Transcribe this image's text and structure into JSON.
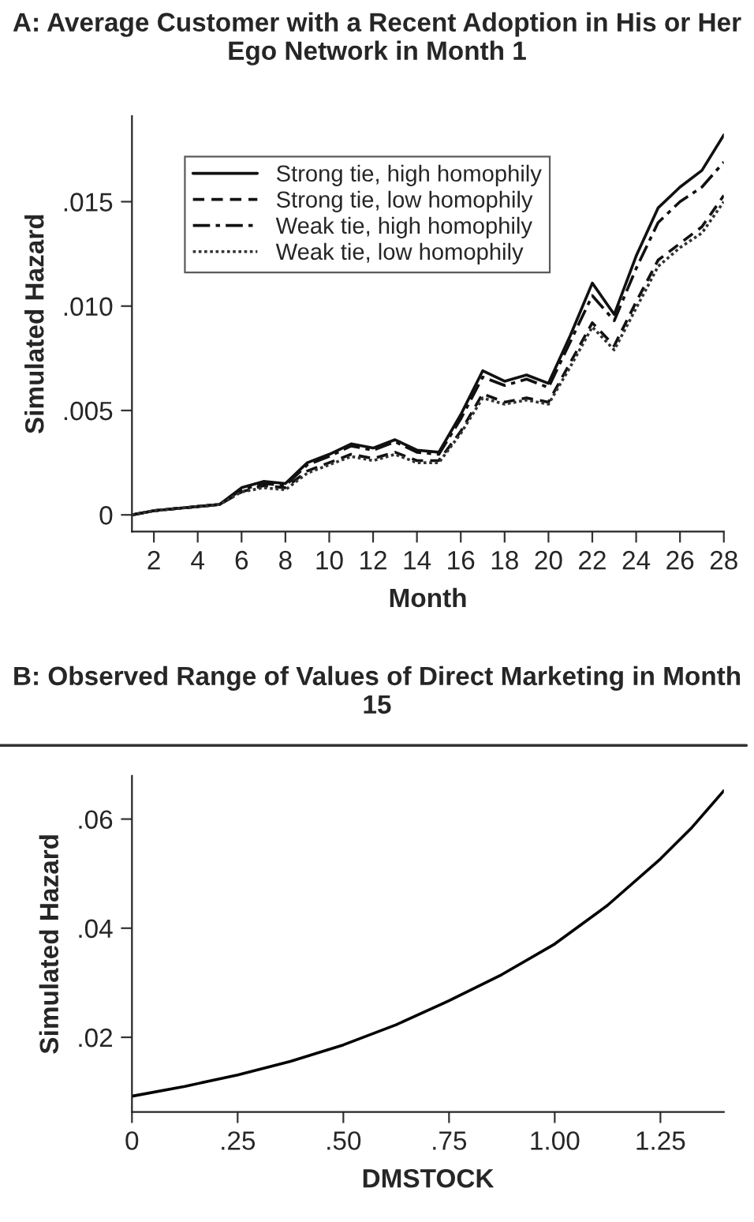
{
  "chart_data": [
    {
      "type": "line",
      "title": "A: Average Customer with a Recent Adoption in His or Her Ego Network in Month 1",
      "xlabel": "Month",
      "ylabel": "Simulated Hazard",
      "x": [
        1,
        2,
        3,
        4,
        5,
        6,
        7,
        8,
        9,
        10,
        11,
        12,
        13,
        14,
        15,
        16,
        17,
        18,
        19,
        20,
        21,
        22,
        23,
        24,
        25,
        26,
        27,
        28
      ],
      "xlim": [
        1,
        28
      ],
      "xticks": [
        2,
        4,
        6,
        8,
        10,
        12,
        14,
        16,
        18,
        20,
        22,
        24,
        26,
        28
      ],
      "ylim": [
        -0.0008,
        0.0191
      ],
      "yticks": [
        {
          "value": 0,
          "label": "0"
        },
        {
          "value": 0.005,
          "label": ".005"
        },
        {
          "value": 0.01,
          "label": ".010"
        },
        {
          "value": 0.015,
          "label": ".015"
        }
      ],
      "grid": false,
      "legend": "top left",
      "marker": "none",
      "series": [
        {
          "name": "Strong tie, high homophily",
          "color": "#111111",
          "line_style": "solid",
          "values": [
            0,
            0.0002,
            0.0003,
            0.0004,
            0.0005,
            0.0013,
            0.0016,
            0.0015,
            0.0025,
            0.0029,
            0.0034,
            0.0032,
            0.0036,
            0.0031,
            0.003,
            0.0048,
            0.0069,
            0.0064,
            0.0067,
            0.0063,
            0.0086,
            0.0111,
            0.0096,
            0.0124,
            0.0147,
            0.0157,
            0.0165,
            0.0182
          ]
        },
        {
          "name": "Strong tie, low homophily",
          "color": "#111111",
          "line_style": "dashed",
          "values": [
            0,
            0.0002,
            0.0003,
            0.0004,
            0.0005,
            0.0011,
            0.0014,
            0.0013,
            0.0021,
            0.0025,
            0.0029,
            0.0027,
            0.003,
            0.0026,
            0.0026,
            0.004,
            0.0058,
            0.0054,
            0.0056,
            0.0054,
            0.0073,
            0.0092,
            0.0081,
            0.0102,
            0.0122,
            0.013,
            0.0138,
            0.0153
          ]
        },
        {
          "name": "Weak tie, high homophily",
          "color": "#111111",
          "line_style": "dashdot",
          "values": [
            0,
            0.0002,
            0.0003,
            0.0004,
            0.0005,
            0.0012,
            0.0015,
            0.0014,
            0.0024,
            0.0028,
            0.0033,
            0.0031,
            0.0035,
            0.003,
            0.0029,
            0.0046,
            0.0066,
            0.0062,
            0.0065,
            0.0061,
            0.0083,
            0.0105,
            0.0093,
            0.0118,
            0.014,
            0.015,
            0.0157,
            0.0169
          ]
        },
        {
          "name": "Weak tie, low homophily",
          "color": "#333333",
          "line_style": "dotted",
          "values": [
            0,
            0.0002,
            0.0003,
            0.0004,
            0.0005,
            0.0011,
            0.0013,
            0.0012,
            0.002,
            0.0024,
            0.0028,
            0.0026,
            0.0029,
            0.0025,
            0.0025,
            0.0039,
            0.0056,
            0.0053,
            0.0055,
            0.0053,
            0.0071,
            0.009,
            0.0079,
            0.0099,
            0.0119,
            0.0128,
            0.0135,
            0.015
          ]
        }
      ]
    },
    {
      "type": "line",
      "title": "B: Observed Range of Values of Direct Marketing in Month 15",
      "xlabel": "DMSTOCK",
      "ylabel": "Simulated Hazard",
      "x": [
        0,
        0.125,
        0.25,
        0.375,
        0.5,
        0.625,
        0.75,
        0.875,
        1.0,
        1.125,
        1.25,
        1.325,
        1.4
      ],
      "xlim": [
        0,
        1.4
      ],
      "xticks": [
        0,
        {
          "value": 0.25,
          "label": ".25"
        },
        {
          "value": 0.5,
          "label": ".50"
        },
        {
          "value": 0.75,
          "label": ".75"
        },
        {
          "value": 1.0,
          "label": "1.00"
        },
        {
          "value": 1.25,
          "label": "1.25"
        }
      ],
      "ylim": [
        0.0063,
        0.0679
      ],
      "yticks": [
        {
          "value": 0.02,
          "label": ".02"
        },
        {
          "value": 0.04,
          "label": ".04"
        },
        {
          "value": 0.06,
          "label": ".06"
        }
      ],
      "grid": false,
      "marker": "none",
      "series": [
        {
          "color": "#000000",
          "line_style": "solid",
          "values": [
            0.0092,
            0.011,
            0.0131,
            0.0156,
            0.0186,
            0.0223,
            0.0267,
            0.0315,
            0.0371,
            0.0442,
            0.0527,
            0.0585,
            0.0652
          ]
        }
      ]
    }
  ]
}
